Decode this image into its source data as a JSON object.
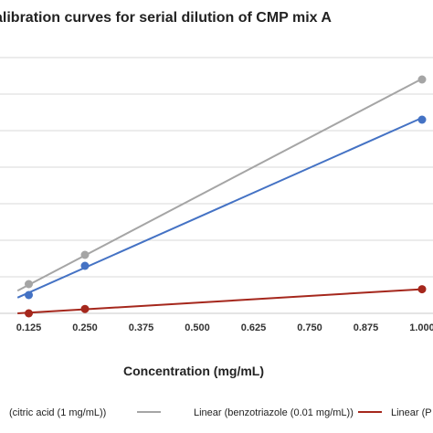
{
  "chart_data": {
    "type": "line",
    "title": "alibration curves for serial dilution of CMP mix A",
    "xlabel": "Concentration (mg/mL)",
    "ylabel": "",
    "x_ticks": [
      "0.125",
      "0.250",
      "0.375",
      "0.500",
      "0.625",
      "0.750",
      "0.875",
      "1.000"
    ],
    "xlim": [
      0,
      1.0
    ],
    "ylim": [
      0,
      7
    ],
    "grid": "horizontal",
    "legend_position": "bottom",
    "legend": [
      {
        "label": "(citric acid (1 mg/mL))",
        "color": "#4472c4"
      },
      {
        "label": "Linear (benzotriazole (0.01 mg/mL))",
        "color": "#a5a5a5"
      },
      {
        "label": "Linear (P",
        "color": "#a5271c"
      }
    ],
    "series": [
      {
        "color": "#a5a5a5",
        "x": [
          0.125,
          0.25,
          1.0
        ],
        "y": [
          0.8,
          1.6,
          6.4
        ],
        "fit": [
          [
            0.1,
            0.62
          ],
          [
            1.0,
            6.42
          ]
        ]
      },
      {
        "color": "#4472c4",
        "x": [
          0.125,
          0.25,
          1.0
        ],
        "y": [
          0.5,
          1.3,
          5.3
        ],
        "fit": [
          [
            0.1,
            0.43
          ],
          [
            1.0,
            5.35
          ]
        ]
      },
      {
        "color": "#a5271c",
        "x": [
          0.125,
          0.25,
          1.0
        ],
        "y": [
          0.0,
          0.12,
          0.66
        ],
        "fit": [
          [
            0.1,
            0.0
          ],
          [
            1.0,
            0.66
          ]
        ]
      }
    ]
  }
}
